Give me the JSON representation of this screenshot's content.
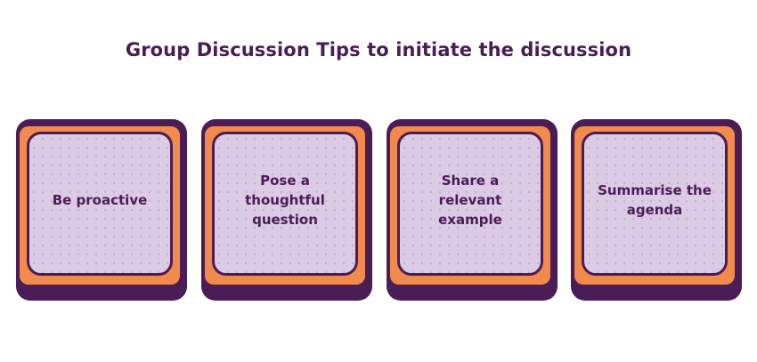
{
  "title": "Group Discussion Tips to initiate the discussion",
  "cards": [
    {
      "label": "Be proactive"
    },
    {
      "label": "Pose a thoughtful\nquestion"
    },
    {
      "label": "Share a relevant\nexample"
    },
    {
      "label": "Summarise the\nagenda"
    }
  ],
  "colors": {
    "dark_purple": "#4a1d56",
    "orange": "#f28a4c",
    "lavender": "#dccbe4"
  }
}
